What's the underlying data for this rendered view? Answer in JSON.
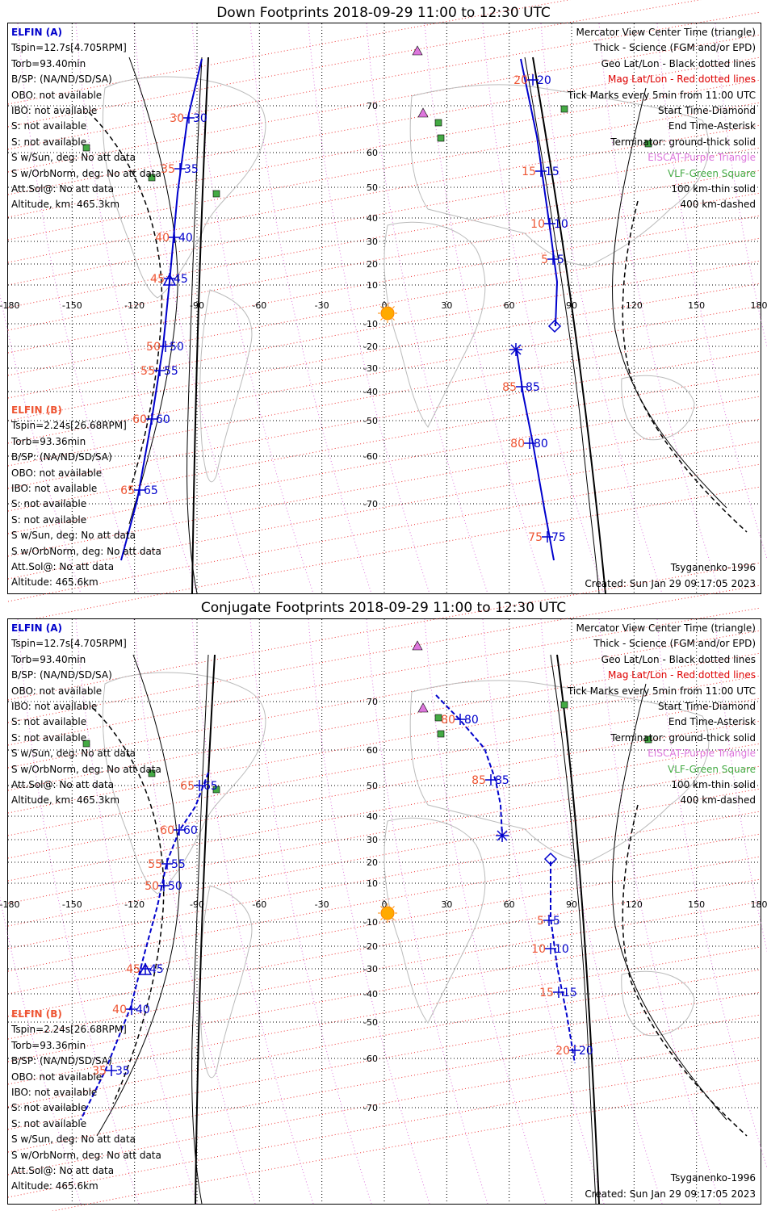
{
  "elfin_a": {
    "header": "ELFIN (A)",
    "lines": [
      "Tspin=12.7s[4.705RPM]",
      "Torb=93.40min",
      "B/SP: (NA/ND/SD/SA)",
      "OBO: not available",
      "IBO: not available",
      "S: not available",
      "S: not available",
      "S w/Sun, deg: No att data",
      "S w/OrbNorm, deg: No att data",
      "Att.Sol@: No att data",
      "Altitude, km: 465.3km"
    ]
  },
  "elfin_b": {
    "header": "ELFIN (B)",
    "lines": [
      "Tspin=2.24s[26.68RPM]",
      "Torb=93.36min",
      "B/SP: (NA/ND/SD/SA)",
      "OBO: not available",
      "IBO: not available",
      "S: not available",
      "S: not available",
      "S w/Sun, deg: No att data",
      "S w/OrbNorm, deg: No att data",
      "Att.Sol@: No att data",
      "Altitude: 465.6km"
    ]
  },
  "legend": {
    "items": [
      {
        "text": "Mercator View Center Time (triangle)",
        "color": "#000000"
      },
      {
        "text": "Thick - Science (FGM and/or EPD)",
        "color": "#000000"
      },
      {
        "text": "Geo Lat/Lon - Black dotted lines",
        "color": "#000000"
      },
      {
        "text": "Mag Lat/Lon - Red dotted lines",
        "color": "#dd0000"
      },
      {
        "text": "Tick Marks every 5min from 11:00 UTC",
        "color": "#000000"
      },
      {
        "text": "Start Time-Diamond",
        "color": "#000000"
      },
      {
        "text": "End Time-Asterisk",
        "color": "#000000"
      },
      {
        "text": "Terminator: ground-thick solid",
        "color": "#000000"
      },
      {
        "text": "EISCAT-Purple Triangle",
        "color": "#dd77dd"
      },
      {
        "text": "VLF-Green Square",
        "color": "#44aa44"
      },
      {
        "text": "100 km-thin solid",
        "color": "#000000"
      },
      {
        "text": "400 km-dashed",
        "color": "#000000"
      }
    ]
  },
  "model": "Tsyganenko-1996",
  "created": "Created: Sun Jan 29 09:17:05 2023",
  "map": {
    "lon_ticks": [
      "-180",
      "-150",
      "-120",
      "-90",
      "-60",
      "-30",
      "0",
      "30",
      "60",
      "90",
      "120",
      "150",
      "180"
    ],
    "lat_ticks": [
      "70",
      "60",
      "50",
      "40",
      "30",
      "20",
      "10",
      "-10",
      "-20",
      "-30",
      "-40",
      "-50",
      "-60",
      "-70"
    ],
    "eiscat_color": "#dd77dd",
    "vlf_color": "#44aa44",
    "track_color": "#0000cc",
    "tick_b_color": "#ee5533"
  },
  "panels": [
    {
      "title": "Down Footprints 2018-09-29 11:00 to 12:30 UTC",
      "track_a": [
        {
          "label_a": "30",
          "label_b": "30"
        },
        {
          "label_a": "35",
          "label_b": "35"
        },
        {
          "label_a": "40",
          "label_b": "40"
        },
        {
          "label_a": "45",
          "label_b": "45"
        },
        {
          "label_a": "50",
          "label_b": "50"
        },
        {
          "label_a": "55",
          "label_b": "55"
        },
        {
          "label_a": "60",
          "label_b": "60"
        },
        {
          "label_a": "65",
          "label_b": "65"
        }
      ],
      "track_b": [
        {
          "label_a": "20",
          "label_b": "20"
        },
        {
          "label_a": "15",
          "label_b": "15"
        },
        {
          "label_a": "10",
          "label_b": "10"
        },
        {
          "label_a": "5",
          "label_b": "5"
        },
        {
          "label_a": "85",
          "label_b": "85"
        },
        {
          "label_a": "80",
          "label_b": "80"
        },
        {
          "label_a": "75",
          "label_b": "75"
        }
      ]
    },
    {
      "title": "Conjugate Footprints 2018-09-29 11:00 to 12:30 UTC",
      "track_a": [
        {
          "label_a": "65",
          "label_b": "65"
        },
        {
          "label_a": "60",
          "label_b": "60"
        },
        {
          "label_a": "55",
          "label_b": "55"
        },
        {
          "label_a": "50",
          "label_b": "50"
        },
        {
          "label_a": "45",
          "label_b": "45"
        },
        {
          "label_a": "40",
          "label_b": "40"
        },
        {
          "label_a": "35",
          "label_b": "35"
        }
      ],
      "track_b": [
        {
          "label_a": "80",
          "label_b": "80"
        },
        {
          "label_a": "85",
          "label_b": "85"
        },
        {
          "label_a": "5",
          "label_b": "5"
        },
        {
          "label_a": "10",
          "label_b": "10"
        },
        {
          "label_a": "15",
          "label_b": "15"
        },
        {
          "label_a": "20",
          "label_b": "20"
        }
      ]
    }
  ]
}
